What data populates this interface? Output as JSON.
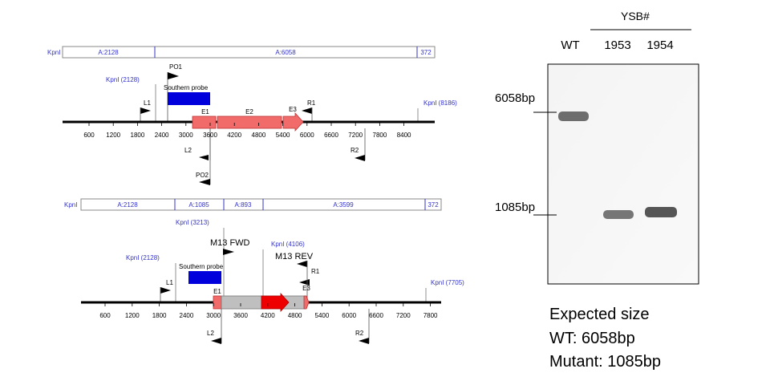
{
  "map_wt": {
    "frag_bar": [
      {
        "label": "A:2128"
      },
      {
        "label": "A:6058"
      },
      {
        "label": "372"
      }
    ],
    "kpn_bar_label": "KpnI",
    "kpn_sites": [
      "KpnI (2128)",
      "KpnI (8186)"
    ],
    "ticks": [
      "600",
      "1200",
      "1800",
      "2400",
      "3000",
      "3600",
      "4200",
      "4800",
      "5400",
      "6000",
      "6600",
      "7200",
      "7800",
      "8400"
    ],
    "features": {
      "e1": "E1",
      "e2": "E2",
      "e3": "E3",
      "probe": "Southern probe"
    },
    "primers": {
      "po1": "PO1",
      "l1": "L1",
      "r1": "R1",
      "l2": "L2",
      "r2": "R2",
      "po2": "PO2"
    }
  },
  "map_mut": {
    "frag_bar": [
      {
        "label": "A:2128"
      },
      {
        "label": "A:1085"
      },
      {
        "label": "A:893"
      },
      {
        "label": "A:3599"
      },
      {
        "label": "372"
      }
    ],
    "kpn_bar_label": "KpnI",
    "kpn_sites": [
      "KpnI (2128)",
      "KpnI (3213)",
      "KpnI (4106)",
      "KpnI (7705)"
    ],
    "ticks": [
      "600",
      "1200",
      "1800",
      "2400",
      "3000",
      "3600",
      "4200",
      "4800",
      "5400",
      "6000",
      "6600",
      "7200",
      "7800"
    ],
    "features": {
      "e1": "E1",
      "e3": "E3",
      "probe": "Southern probe"
    },
    "primers": {
      "m13fwd": "M13 FWD",
      "m13rev": "M13 REV",
      "l1": "L1",
      "r1": "R1",
      "l2": "L2",
      "r2": "R2"
    }
  },
  "gel": {
    "group_label": "YSB#",
    "lanes": [
      "WT",
      "1953",
      "1954"
    ],
    "markers": [
      "6058bp",
      "1085bp"
    ]
  },
  "legend": {
    "title": "Expected size",
    "wt": "WT: 6058bp",
    "mutant": "Mutant: 1085bp"
  },
  "colors": {
    "exon": "#f26b6b",
    "probe": "#0000dd",
    "insert": "#ee0000",
    "cassette": "#bfbfbf",
    "site_label": "#3333cc"
  }
}
